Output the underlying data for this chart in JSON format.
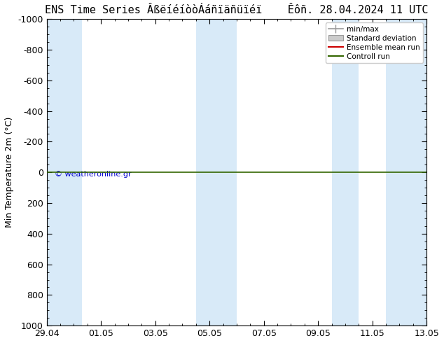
{
  "title": "ENS Time Series ÂßëíéíòòÁáñïäñüïéï",
  "title2": "Êôñ. 28.04.2024 11 UTC",
  "ylabel": "Min Temperature 2m (°C)",
  "xtick_labels": [
    "29.04",
    "01.05",
    "03.05",
    "05.05",
    "07.05",
    "09.05",
    "11.05",
    "13.05"
  ],
  "ytick_values": [
    -1000,
    -800,
    -600,
    -400,
    -200,
    0,
    200,
    400,
    600,
    800,
    1000
  ],
  "ylim_top": -1000,
  "ylim_bottom": 1000,
  "xlim_left": 0,
  "xlim_right": 14,
  "x_positions": [
    0,
    2,
    4,
    6,
    8,
    10,
    12,
    14
  ],
  "bg_color": "#ffffff",
  "plot_bg_color": "#ffffff",
  "shade_spans": [
    [
      0,
      1.3
    ],
    [
      5.5,
      7.0
    ],
    [
      10.5,
      11.5
    ],
    [
      12.5,
      14.0
    ]
  ],
  "shade_color": "#d8eaf8",
  "green_line_y": 0,
  "copyright_text": "© weatheronline.gr",
  "legend_labels": [
    "min/max",
    "Standard deviation",
    "Ensemble mean run",
    "Controll run"
  ],
  "title_fontsize": 11,
  "axis_fontsize": 9,
  "tick_fontsize": 9
}
